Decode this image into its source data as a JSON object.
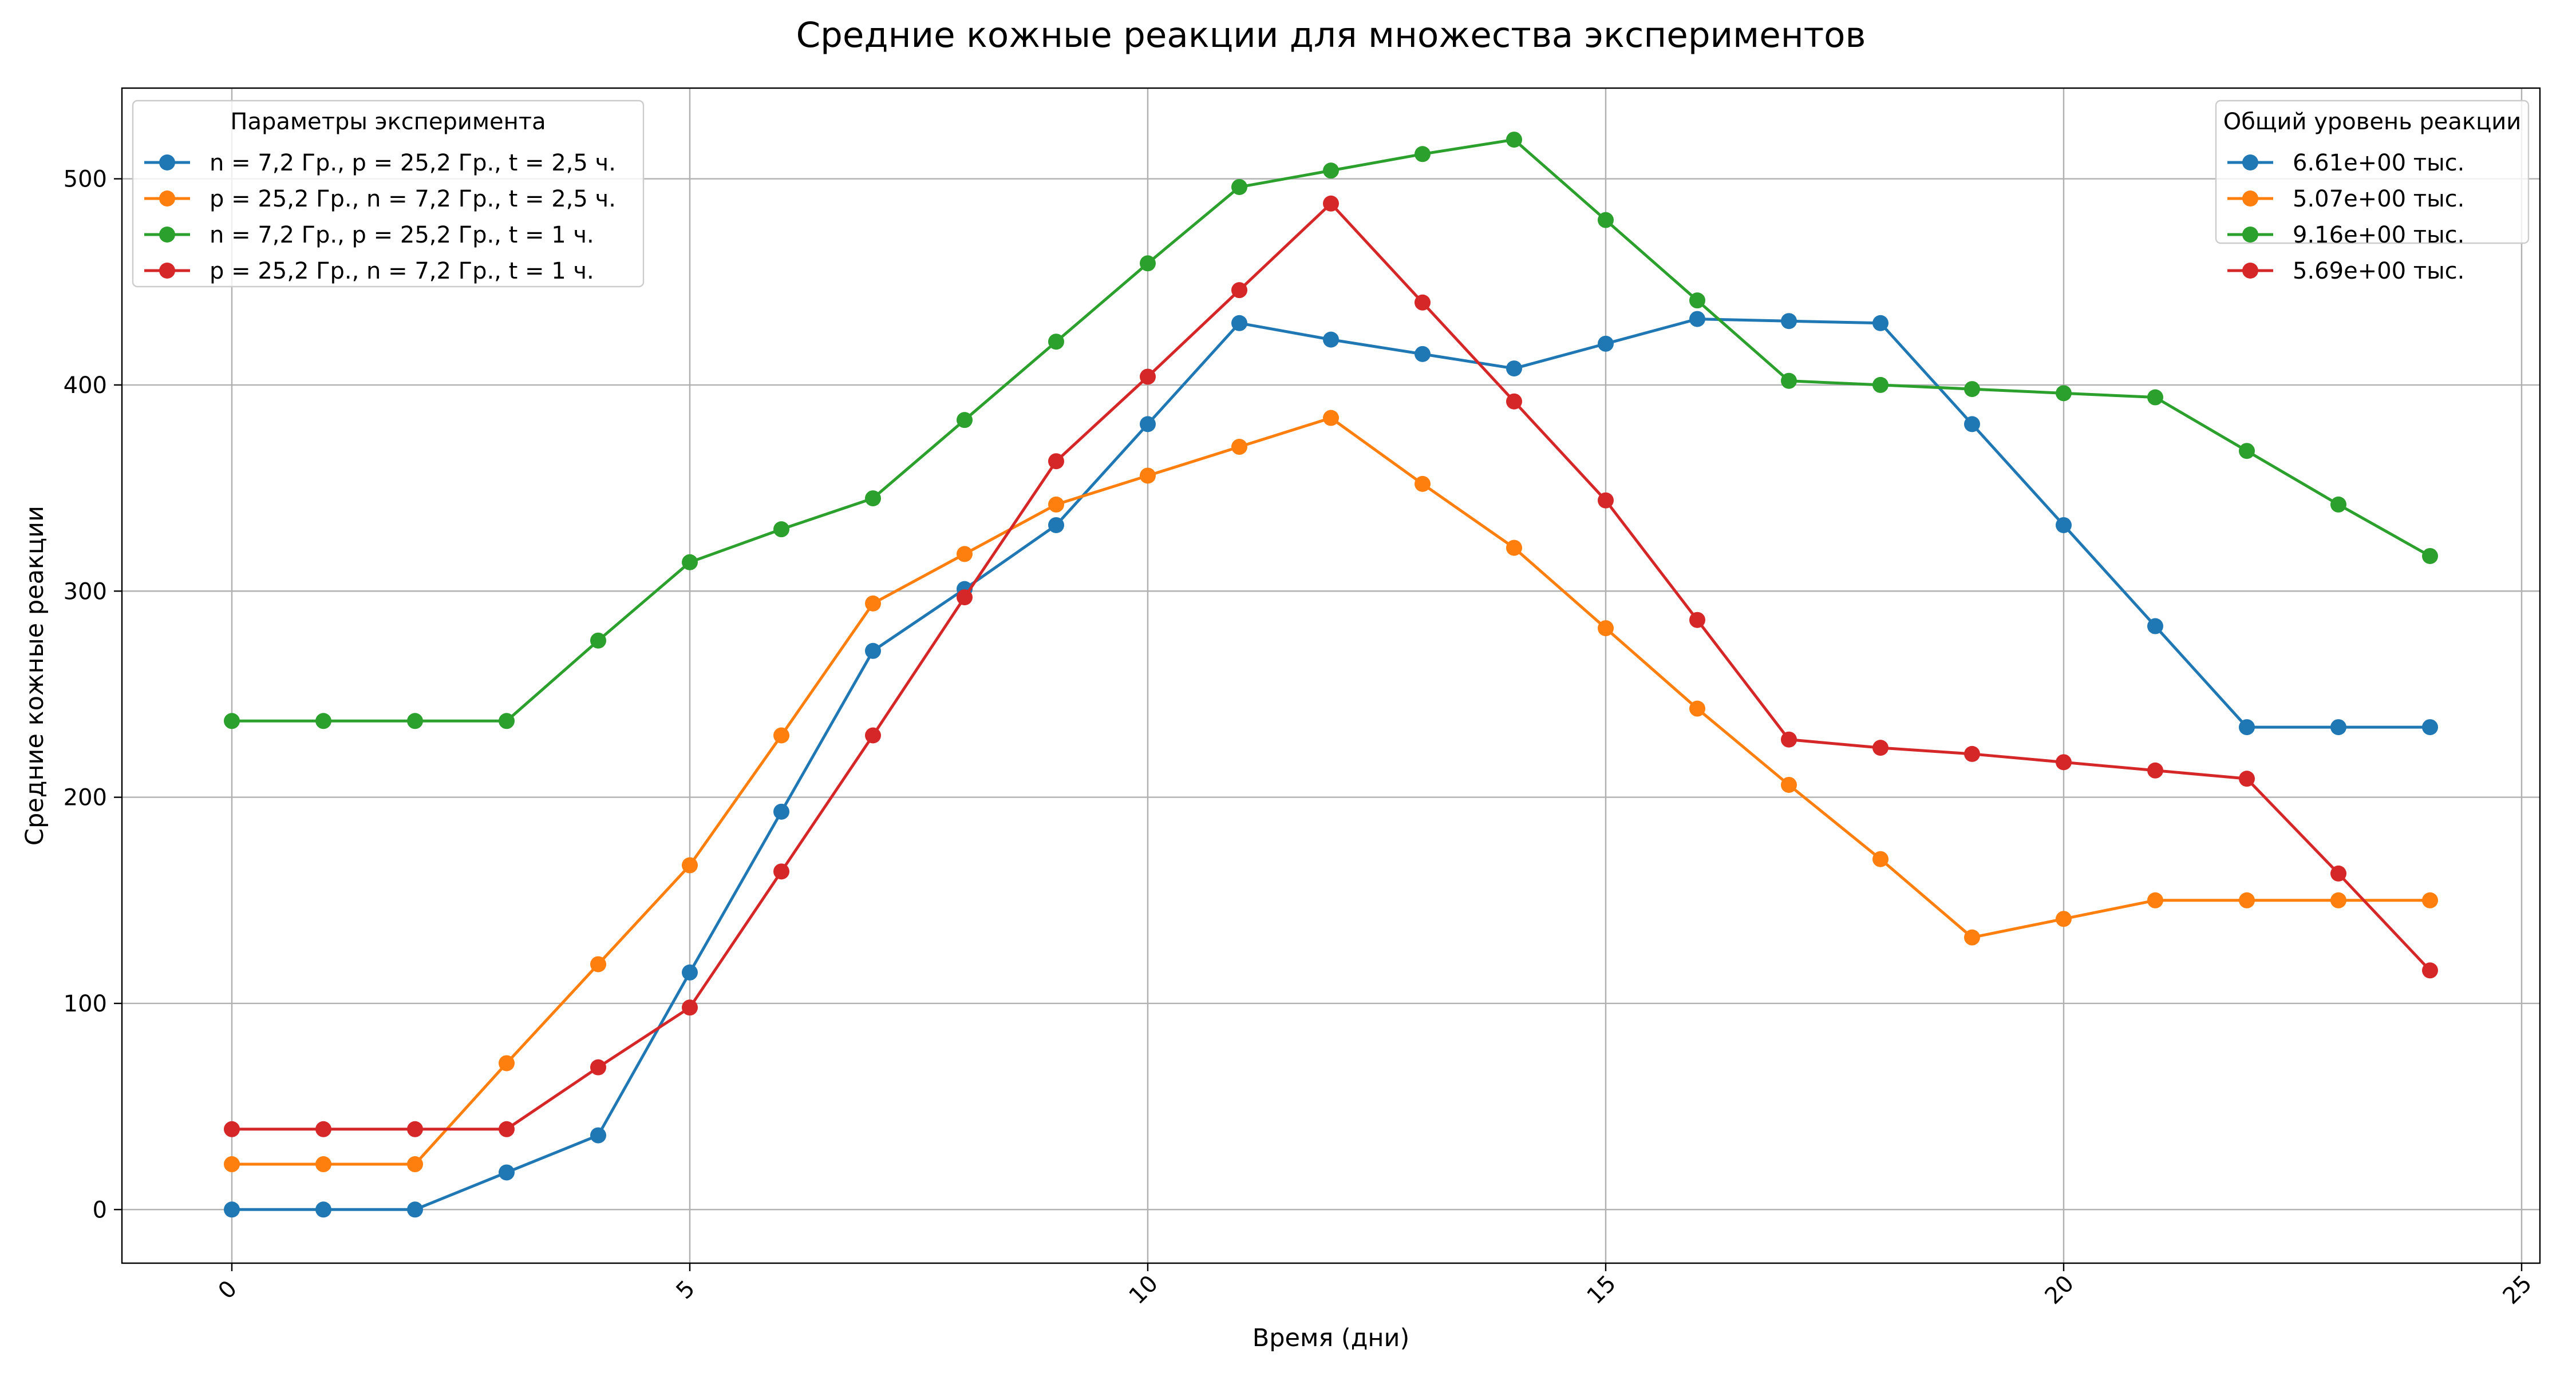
{
  "chart_data": {
    "type": "line",
    "title": "Средние кожные реакции для множества экспериментов",
    "xlabel": "Время (дни)",
    "ylabel": "Средние кожные реакции",
    "xlim": [
      -1.2,
      25.2
    ],
    "ylim": [
      -26,
      544
    ],
    "x_ticks": [
      0,
      5,
      10,
      15,
      20,
      25
    ],
    "y_ticks": [
      0,
      100,
      200,
      300,
      400,
      500
    ],
    "x_tick_rotation_deg": -45,
    "grid": true,
    "marker": "circle",
    "x": [
      0,
      1,
      2,
      3,
      4,
      5,
      6,
      7,
      8,
      9,
      10,
      11,
      12,
      13,
      14,
      15,
      16,
      17,
      18,
      19,
      20,
      21,
      22,
      23,
      24
    ],
    "series": [
      {
        "name": "n = 7,2 Гр., p = 25,2 Гр., t = 2,5 ч.",
        "total_label": "6.61e+00 тыс.",
        "color": "#1f77b4",
        "values": [
          0,
          0,
          0,
          18,
          36,
          115,
          193,
          271,
          301,
          332,
          381,
          430,
          422,
          415,
          408,
          420,
          432,
          431,
          430,
          381,
          332,
          283,
          234,
          234,
          234
        ]
      },
      {
        "name": "p = 25,2 Гр., n = 7,2 Гр., t = 2,5 ч.",
        "total_label": "5.07e+00 тыс.",
        "color": "#ff7f0e",
        "values": [
          22,
          22,
          22,
          71,
          119,
          167,
          230,
          294,
          318,
          342,
          356,
          370,
          384,
          352,
          321,
          282,
          243,
          206,
          170,
          132,
          141,
          150,
          150,
          150,
          150
        ]
      },
      {
        "name": "n = 7,2 Гр., p = 25,2 Гр., t = 1 ч.",
        "total_label": "9.16e+00 тыс.",
        "color": "#2ca02c",
        "values": [
          237,
          237,
          237,
          237,
          276,
          314,
          330,
          345,
          383,
          421,
          459,
          496,
          504,
          512,
          519,
          480,
          441,
          402,
          400,
          398,
          396,
          394,
          368,
          342,
          317
        ]
      },
      {
        "name": "p = 25,2 Гр., n = 7,2 Гр., t = 1 ч.",
        "total_label": "5.69e+00 тыс.",
        "color": "#d62728",
        "values": [
          39,
          39,
          39,
          39,
          69,
          98,
          164,
          230,
          297,
          363,
          404,
          446,
          488,
          440,
          392,
          344,
          286,
          228,
          224,
          221,
          217,
          213,
          209,
          163,
          116
        ]
      }
    ],
    "legends": [
      {
        "title": "Параметры эксперимента",
        "placement": "top-left",
        "label_field": "name"
      },
      {
        "title": "Общий уровень реакции",
        "placement": "top-right",
        "label_field": "total_label"
      }
    ]
  }
}
